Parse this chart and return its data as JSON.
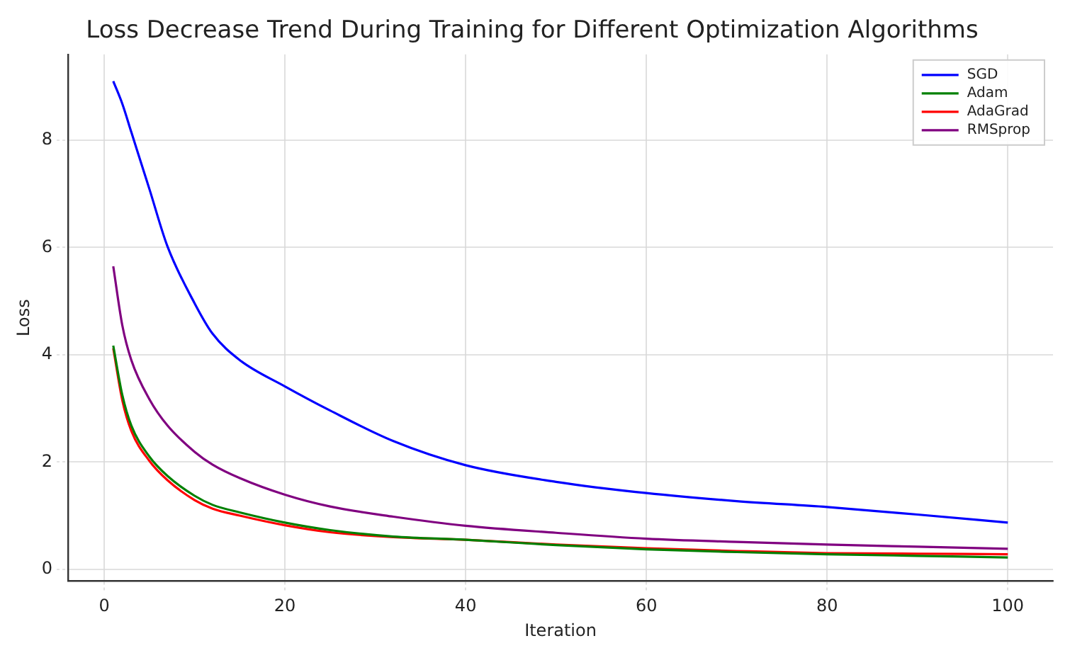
{
  "chart_data": {
    "type": "line",
    "title": "Loss Decrease Trend During Training for Different Optimization Algorithms",
    "xlabel": "Iteration",
    "ylabel": "Loss",
    "x": [
      1,
      2,
      3,
      5,
      7,
      10,
      12,
      15,
      20,
      25,
      32,
      40,
      50,
      60,
      70,
      80,
      90,
      100
    ],
    "series": [
      {
        "name": "SGD",
        "color": "#0000ff",
        "values": [
          9.1,
          8.68,
          8.15,
          7.09,
          6.02,
          4.96,
          4.39,
          3.9,
          3.41,
          2.96,
          2.39,
          1.94,
          1.63,
          1.42,
          1.27,
          1.16,
          1.02,
          0.87
        ]
      },
      {
        "name": "Adam",
        "color": "#008000",
        "values": [
          4.17,
          3.25,
          2.68,
          2.1,
          1.74,
          1.37,
          1.2,
          1.06,
          0.87,
          0.73,
          0.61,
          0.55,
          0.45,
          0.37,
          0.32,
          0.28,
          0.25,
          0.22
        ]
      },
      {
        "name": "AdaGrad",
        "color": "#ff0000",
        "values": [
          4.12,
          3.15,
          2.58,
          2.02,
          1.66,
          1.29,
          1.13,
          1.0,
          0.82,
          0.69,
          0.6,
          0.55,
          0.46,
          0.39,
          0.34,
          0.3,
          0.29,
          0.28
        ]
      },
      {
        "name": "RMSprop",
        "color": "#800080",
        "values": [
          5.65,
          4.55,
          3.9,
          3.17,
          2.68,
          2.19,
          1.95,
          1.7,
          1.39,
          1.17,
          0.98,
          0.81,
          0.68,
          0.57,
          0.51,
          0.46,
          0.42,
          0.38
        ]
      }
    ],
    "xlim": [
      -4,
      105
    ],
    "xticks": [
      0,
      20,
      40,
      60,
      80,
      100
    ],
    "ylim": [
      -0.22,
      9.6
    ],
    "yticks": [
      0,
      2,
      4,
      6,
      8
    ],
    "grid": true,
    "legend": "top right",
    "marker": "none",
    "line_style": "solid"
  }
}
